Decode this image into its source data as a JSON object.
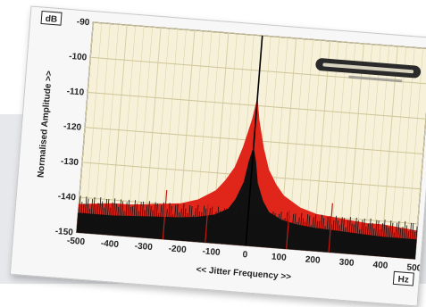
{
  "chart_data": {
    "type": "area",
    "ylabel": "Normalised Amplitude >>",
    "xlabel": "<< Jitter Frequency >>",
    "y_unit": "dB",
    "x_unit": "Hz",
    "xlim": [
      -500,
      500
    ],
    "ylim": [
      -150,
      -90
    ],
    "x_ticks": [
      -500,
      -400,
      -300,
      -200,
      -100,
      0,
      100,
      200,
      300,
      400,
      500
    ],
    "y_ticks": [
      -90,
      -100,
      -110,
      -120,
      -130,
      -140,
      -150
    ],
    "grid": true,
    "series": [
      {
        "color": "#e0261b",
        "x": [
          -500,
          -450,
          -400,
          -350,
          -300,
          -250,
          -200,
          -150,
          -100,
          -75,
          -50,
          -40,
          -30,
          -20,
          -10,
          -5,
          0,
          5,
          10,
          20,
          30,
          40,
          50,
          75,
          100,
          150,
          200,
          250,
          300,
          350,
          400,
          450,
          500
        ],
        "y": [
          -142,
          -141.5,
          -141,
          -141,
          -140.5,
          -140,
          -139.5,
          -138,
          -135,
          -132,
          -128,
          -125,
          -122,
          -118,
          -114,
          -111,
          -108,
          -111,
          -114,
          -118,
          -122,
          -125,
          -128,
          -132,
          -135,
          -138,
          -139.5,
          -140,
          -140.5,
          -141,
          -141,
          -141.5,
          -142
        ]
      },
      {
        "color": "#111111",
        "x": [
          -500,
          -400,
          -300,
          -200,
          -150,
          -100,
          -60,
          -40,
          -20,
          -10,
          0,
          10,
          20,
          40,
          60,
          100,
          150,
          200,
          300,
          400,
          500
        ],
        "y": [
          -144.5,
          -144.5,
          -144,
          -143.5,
          -143,
          -142,
          -140,
          -137,
          -132,
          -126,
          -122,
          -126,
          -132,
          -137,
          -140,
          -142,
          -143,
          -143.5,
          -144,
          -144.5,
          -144.5
        ]
      }
    ],
    "spikes": [
      {
        "x": 0,
        "y": -90
      },
      {
        "x": -245,
        "y": -136
      },
      {
        "x": 245,
        "y": -136
      },
      {
        "x": -120,
        "y": -139
      },
      {
        "x": 120,
        "y": -139
      }
    ]
  }
}
